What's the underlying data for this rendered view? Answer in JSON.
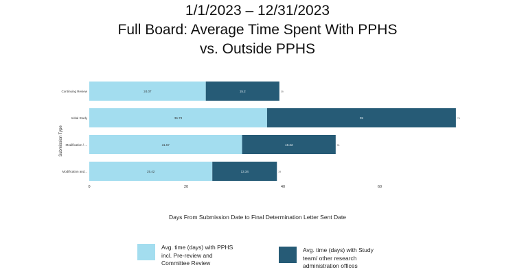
{
  "chart_data": {
    "type": "bar",
    "orientation": "horizontal",
    "stacked": true,
    "title_lines": [
      "1/1/2023 – 12/31/2023",
      "Full Board: Average Time Spent With PPHS",
      "vs. Outside PPHS"
    ],
    "xlabel": "Days From Submission Date to Final Determination Letter Sent Date",
    "ylabel": "Submission Type",
    "xlim": [
      0,
      80
    ],
    "xticks": [
      "0",
      "20",
      "40",
      "60"
    ],
    "grid": false,
    "legend_position": "bottom",
    "categories": [
      "Continuing Review",
      "Initial Study",
      "Modification / ...",
      "Modification and..."
    ],
    "series": [
      {
        "name": "Avg. time (days) with PPHS incl. Pre-review and Committee Review",
        "color": "#a3ddef",
        "values": [
          24.07,
          36.73,
          31.57,
          25.42
        ],
        "labels": [
          "24.07",
          "36.73",
          "31.57",
          "25.42"
        ]
      },
      {
        "name": "Avg. time (days) with Study team/ other research administration offices",
        "color": "#265b76",
        "values": [
          15.2,
          39,
          19.33,
          13.34
        ],
        "labels": [
          "15.2",
          "39",
          "19.33",
          "13.34"
        ]
      }
    ],
    "totals": [
      "39",
      "76",
      "51",
      "39"
    ]
  }
}
